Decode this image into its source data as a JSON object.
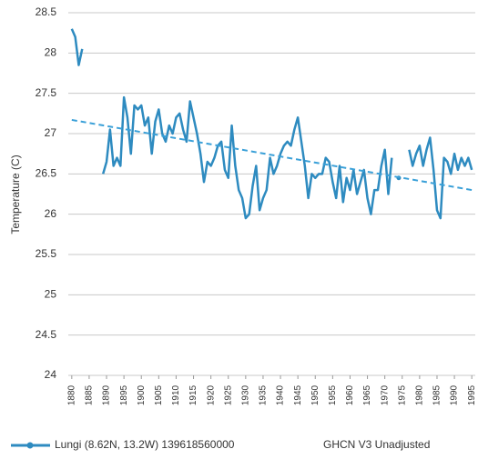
{
  "chart_data": {
    "type": "line",
    "y_label": "Temperature  (C)",
    "annotation": "GHCN V3 Unadjusted",
    "x": [
      1880,
      1881,
      1882,
      1883,
      1884,
      1885,
      1886,
      1887,
      1888,
      1889,
      1890,
      1891,
      1892,
      1893,
      1894,
      1895,
      1896,
      1897,
      1898,
      1899,
      1900,
      1901,
      1902,
      1903,
      1904,
      1905,
      1906,
      1907,
      1908,
      1909,
      1910,
      1911,
      1912,
      1913,
      1914,
      1915,
      1916,
      1917,
      1918,
      1919,
      1920,
      1921,
      1922,
      1923,
      1924,
      1925,
      1926,
      1927,
      1928,
      1929,
      1930,
      1931,
      1932,
      1933,
      1934,
      1935,
      1936,
      1937,
      1938,
      1939,
      1940,
      1941,
      1942,
      1943,
      1944,
      1945,
      1946,
      1947,
      1948,
      1949,
      1950,
      1951,
      1952,
      1953,
      1954,
      1955,
      1956,
      1957,
      1958,
      1959,
      1960,
      1961,
      1962,
      1963,
      1964,
      1965,
      1966,
      1967,
      1968,
      1969,
      1970,
      1971,
      1972,
      1973,
      1974,
      1975,
      1976,
      1977,
      1978,
      1979,
      1980,
      1981,
      1982,
      1983,
      1984,
      1985,
      1986,
      1987,
      1988,
      1989,
      1990,
      1991,
      1992,
      1993,
      1994,
      1995
    ],
    "series": [
      {
        "name": "Lungi (8.62N, 13.2W) 139618560000",
        "color": "#2e8bc0",
        "values": [
          28.3,
          28.2,
          27.85,
          28.05,
          null,
          null,
          null,
          null,
          null,
          26.5,
          26.65,
          27.05,
          26.6,
          26.7,
          26.6,
          27.45,
          27.2,
          26.75,
          27.35,
          27.3,
          27.35,
          27.1,
          27.2,
          26.75,
          27.15,
          27.3,
          27.0,
          26.9,
          27.1,
          27.0,
          27.2,
          27.25,
          27.05,
          26.9,
          27.4,
          27.2,
          27.0,
          26.75,
          26.4,
          26.65,
          26.6,
          26.7,
          26.85,
          26.9,
          26.55,
          26.45,
          27.1,
          26.6,
          26.3,
          26.2,
          25.95,
          26.0,
          26.35,
          26.6,
          26.05,
          26.2,
          26.3,
          26.7,
          26.5,
          26.6,
          26.75,
          26.85,
          26.9,
          26.85,
          27.05,
          27.2,
          26.9,
          26.6,
          26.2,
          26.5,
          26.45,
          26.5,
          26.5,
          26.7,
          26.65,
          26.4,
          26.2,
          26.6,
          26.15,
          26.45,
          26.3,
          26.55,
          26.25,
          26.4,
          26.55,
          26.2,
          26.0,
          26.3,
          26.3,
          26.6,
          26.8,
          26.25,
          26.7,
          null,
          26.45,
          null,
          null,
          26.8,
          26.6,
          26.75,
          26.85,
          26.6,
          26.8,
          26.95,
          26.55,
          26.05,
          25.95,
          26.7,
          26.65,
          26.5,
          26.75,
          26.55,
          26.7,
          26.6,
          26.7,
          26.55
        ]
      }
    ],
    "trend": {
      "color": "#3aa0d8",
      "x": [
        1880,
        1995
      ],
      "values": [
        27.17,
        26.3
      ]
    },
    "xlim": [
      1879,
      1996
    ],
    "xticks": [
      1880,
      1885,
      1890,
      1895,
      1900,
      1905,
      1910,
      1915,
      1920,
      1925,
      1930,
      1935,
      1940,
      1945,
      1950,
      1955,
      1960,
      1965,
      1970,
      1975,
      1980,
      1985,
      1990,
      1995
    ],
    "ylim": [
      24,
      28.5
    ],
    "yticks": [
      24,
      24.5,
      25,
      25.5,
      26,
      26.5,
      27,
      27.5,
      28,
      28.5
    ],
    "grid": true
  }
}
